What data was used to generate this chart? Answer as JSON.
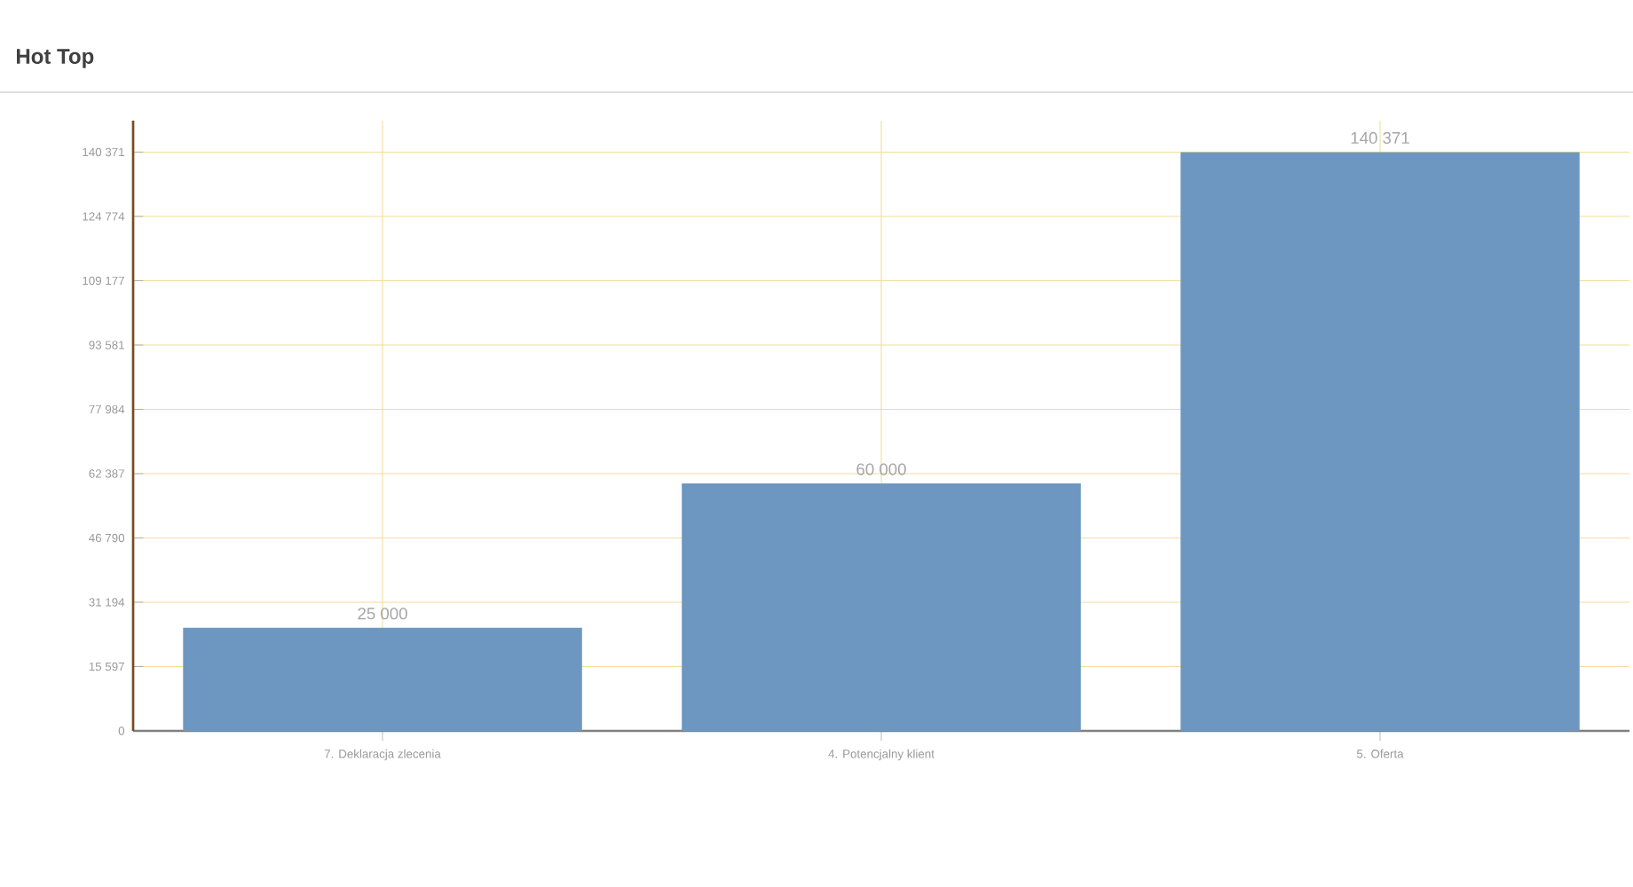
{
  "chart_data": {
    "type": "bar",
    "title": "Hot Top",
    "categories": [
      "7. Deklaracja zlecenia",
      "4. Potencjalny klient",
      "5. Oferta"
    ],
    "values": [
      25000,
      60000,
      140371
    ],
    "color": "#6d97c0",
    "data_labels": true,
    "value_labels": [
      "25 000",
      "60 000",
      "140 371"
    ],
    "ylim": [
      0,
      148000
    ],
    "yticks": [
      0,
      {
        "value": 15597,
        "label": "15 597"
      },
      {
        "value": 31194,
        "label": "31 194"
      },
      {
        "value": 46790,
        "label": "46 790"
      },
      {
        "value": 62387,
        "label": "62 387"
      },
      {
        "value": 77984,
        "label": "77 984"
      },
      {
        "value": 93581,
        "label": "93 581"
      },
      {
        "value": 109177,
        "label": "109 177"
      },
      {
        "value": 124774,
        "label": "124 774"
      },
      {
        "value": 140371,
        "label": "140 371"
      }
    ],
    "grid": true
  }
}
